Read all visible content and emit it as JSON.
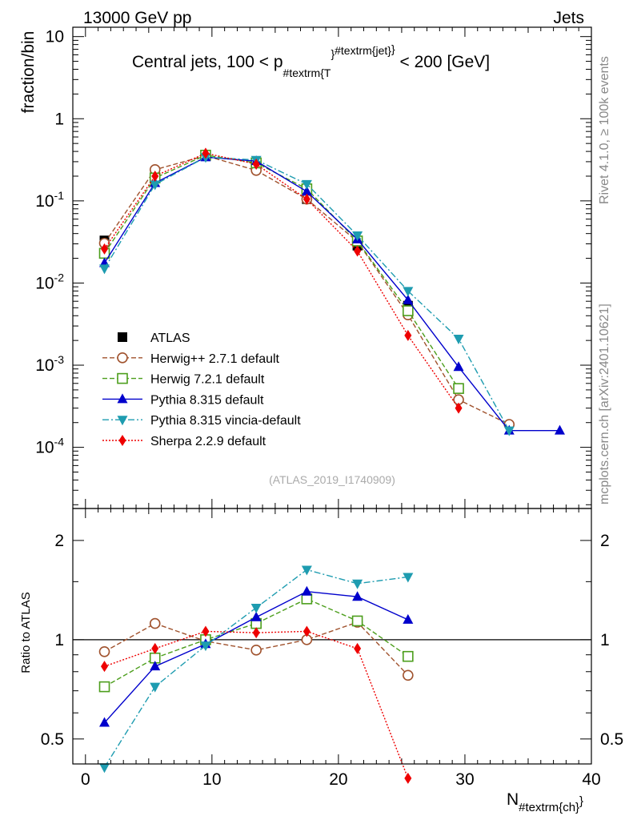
{
  "header": {
    "left": "13000 GeV pp",
    "right": "Jets"
  },
  "title": {
    "main": "Central jets, 100 < p",
    "sub": "#textrm{T",
    "sup": "#textrm{jet}",
    "brace": "}",
    "tail": " < 200 [GeV]"
  },
  "side_labels": {
    "rivet": "Rivet 4.1.0, ≥ 100k events",
    "mcplots": "mcplots.cern.ch [arXiv:2401.10621]"
  },
  "watermark": "(ATLAS_2019_I1740909)",
  "chart_data": {
    "type": "line",
    "title": "Central jets, 100 < p_T^jet < 200 [GeV]",
    "xlabel": "N_#textrm{ch}",
    "xlabel_main": "N",
    "xlabel_sub": "#textrm{ch}",
    "xlabel_brace": "}",
    "xlim": [
      -1,
      40
    ],
    "x_ticks": [
      "0",
      "10",
      "20",
      "30",
      "40"
    ],
    "upper": {
      "ylabel": "fraction/bin",
      "yscale": "log",
      "ylim": [
        1.8e-05,
        13
      ],
      "y_ticks": [
        {
          "base": "10",
          "exp": "-4",
          "v": 0.0001
        },
        {
          "base": "10",
          "exp": "-3",
          "v": 0.001
        },
        {
          "base": "10",
          "exp": "-2",
          "v": 0.01
        },
        {
          "base": "10",
          "exp": "-1",
          "v": 0.1
        },
        {
          "base": "1",
          "exp": "",
          "v": 1
        },
        {
          "base": "10",
          "exp": "",
          "v": 10
        }
      ]
    },
    "lower": {
      "ylabel": "Ratio to ATLAS",
      "yscale": "log",
      "ylim": [
        0.42,
        2.5
      ],
      "y_ticks": [
        {
          "label": "0.5",
          "v": 0.5
        },
        {
          "label": "1",
          "v": 1
        },
        {
          "label": "2",
          "v": 2
        }
      ],
      "reference_line": 1
    },
    "series": [
      {
        "name": "ATLAS",
        "color": "#000000",
        "marker": "square-filled",
        "dash": "",
        "x": [
          1.5,
          5.5,
          9.5,
          13.5,
          17.5,
          21.5,
          25.5
        ],
        "y": [
          0.033,
          0.215,
          0.36,
          0.265,
          0.105,
          0.0285,
          0.0053
        ],
        "ratio": []
      },
      {
        "name": "Herwig++ 2.7.1 default",
        "color": "#a0522d",
        "marker": "circle-open",
        "dash": "6,3",
        "x": [
          1.5,
          5.5,
          9.5,
          13.5,
          17.5,
          21.5,
          25.5,
          29.5,
          33.5
        ],
        "y": [
          0.0305,
          0.24,
          0.355,
          0.235,
          0.105,
          0.032,
          0.0041,
          0.00038,
          0.00019
        ],
        "ratio": [
          0.92,
          1.12,
          0.99,
          0.93,
          1.0,
          1.13,
          0.78
        ]
      },
      {
        "name": "Herwig 7.2.1 default",
        "color": "#4c9e1c",
        "marker": "square-open",
        "dash": "6,3",
        "x": [
          1.5,
          5.5,
          9.5,
          13.5,
          17.5,
          21.5,
          25.5,
          29.5
        ],
        "y": [
          0.023,
          0.19,
          0.36,
          0.29,
          0.14,
          0.0325,
          0.0046,
          0.00052
        ],
        "ratio": [
          0.72,
          0.88,
          1.0,
          1.12,
          1.33,
          1.14,
          0.89
        ]
      },
      {
        "name": "Pythia 8.315 default",
        "color": "#0000cc",
        "marker": "triangle-up",
        "dash": "",
        "x": [
          1.5,
          5.5,
          9.5,
          13.5,
          17.5,
          21.5,
          25.5,
          29.5,
          33.5,
          37.5
        ],
        "y": [
          0.0175,
          0.165,
          0.34,
          0.305,
          0.13,
          0.034,
          0.0062,
          0.00095,
          0.00016,
          0.00016
        ],
        "ratio": [
          0.56,
          0.83,
          0.97,
          1.17,
          1.4,
          1.35,
          1.15
        ]
      },
      {
        "name": "Pythia 8.315 vincia-default",
        "color": "#1e9cb0",
        "marker": "triangle-down",
        "dash": "8,3,2,3",
        "x": [
          1.5,
          5.5,
          9.5,
          13.5,
          17.5,
          21.5,
          25.5,
          29.5,
          33.5
        ],
        "y": [
          0.015,
          0.158,
          0.34,
          0.315,
          0.16,
          0.038,
          0.008,
          0.0021,
          0.00016
        ],
        "ratio": [
          0.41,
          0.72,
          0.96,
          1.25,
          1.63,
          1.48,
          1.55
        ]
      },
      {
        "name": "Sherpa 2.2.9 default",
        "color": "#ee0000",
        "marker": "diamond",
        "dash": "2,2",
        "x": [
          1.5,
          5.5,
          9.5,
          13.5,
          17.5,
          21.5,
          25.5,
          29.5
        ],
        "y": [
          0.026,
          0.2,
          0.38,
          0.28,
          0.105,
          0.0245,
          0.0023,
          0.0003
        ],
        "ratio": [
          0.83,
          0.94,
          1.06,
          1.05,
          1.06,
          0.94,
          0.38
        ]
      }
    ]
  }
}
